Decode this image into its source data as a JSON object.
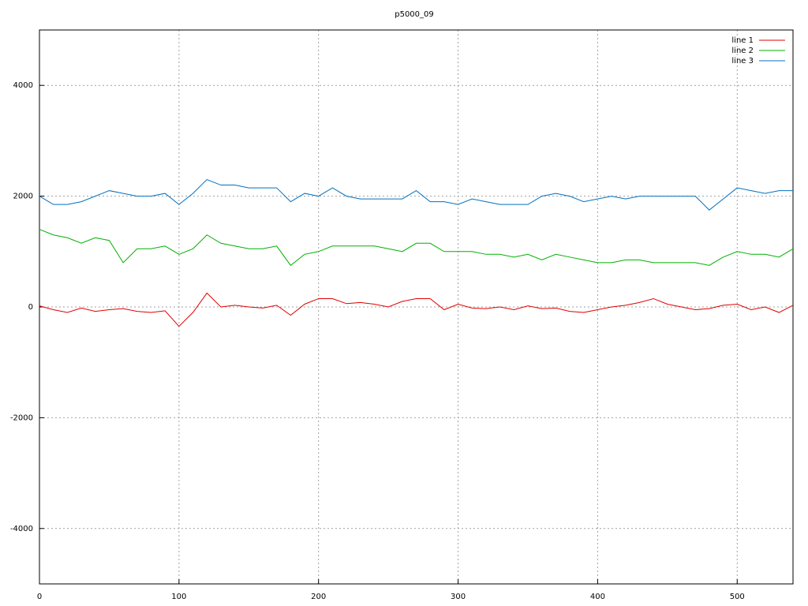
{
  "chart_data": {
    "type": "line",
    "title": "p5000_09",
    "x": [
      0,
      10,
      20,
      30,
      40,
      50,
      60,
      70,
      80,
      90,
      100,
      110,
      120,
      130,
      140,
      150,
      160,
      170,
      180,
      190,
      200,
      210,
      220,
      230,
      240,
      250,
      260,
      270,
      280,
      290,
      300,
      310,
      320,
      330,
      340,
      350,
      360,
      370,
      380,
      390,
      400,
      410,
      420,
      430,
      440,
      450,
      460,
      470,
      480,
      490,
      500,
      510,
      520,
      530,
      540
    ],
    "series": [
      {
        "name": "line 1",
        "color": "#e00000",
        "values": [
          20,
          -50,
          -100,
          -20,
          -80,
          -50,
          -30,
          -80,
          -100,
          -70,
          -350,
          -100,
          250,
          0,
          30,
          0,
          -20,
          30,
          -150,
          50,
          150,
          150,
          60,
          80,
          50,
          0,
          100,
          150,
          150,
          -50,
          50,
          -20,
          -30,
          0,
          -50,
          20,
          -30,
          -20,
          -80,
          -100,
          -50,
          0,
          30,
          80,
          150,
          50,
          0,
          -50,
          -30,
          30,
          50,
          -50,
          0,
          -100,
          30
        ]
      },
      {
        "name": "line 2",
        "color": "#00b000",
        "values": [
          1400,
          1300,
          1250,
          1150,
          1250,
          1200,
          800,
          1050,
          1050,
          1100,
          950,
          1050,
          1300,
          1150,
          1100,
          1050,
          1050,
          1100,
          750,
          950,
          1000,
          1100,
          1100,
          1100,
          1100,
          1050,
          1000,
          1150,
          1150,
          1000,
          1000,
          1000,
          950,
          950,
          900,
          950,
          850,
          950,
          900,
          850,
          800,
          800,
          850,
          850,
          800,
          800,
          800,
          800,
          750,
          900,
          1000,
          950,
          950,
          900,
          1050
        ]
      },
      {
        "name": "line 3",
        "color": "#0070c0",
        "values": [
          2000,
          1850,
          1850,
          1900,
          2000,
          2100,
          2050,
          2000,
          2000,
          2050,
          1850,
          2050,
          2300,
          2200,
          2200,
          2150,
          2150,
          2150,
          1900,
          2050,
          2000,
          2150,
          2000,
          1950,
          1950,
          1950,
          1950,
          2100,
          1900,
          1900,
          1850,
          1950,
          1900,
          1850,
          1850,
          1850,
          2000,
          2050,
          2000,
          1900,
          1950,
          2000,
          1950,
          2000,
          2000,
          2000,
          2000,
          2000,
          1750,
          1950,
          2150,
          2100,
          2050,
          2100,
          2100
        ]
      }
    ],
    "xlim": [
      0,
      540
    ],
    "xticks": [
      0,
      100,
      200,
      300,
      400,
      500
    ],
    "ylim": [
      -5000,
      5000
    ],
    "yticks": [
      -4000,
      -2000,
      0,
      2000,
      4000
    ],
    "grid": true,
    "legend": "top-right"
  }
}
